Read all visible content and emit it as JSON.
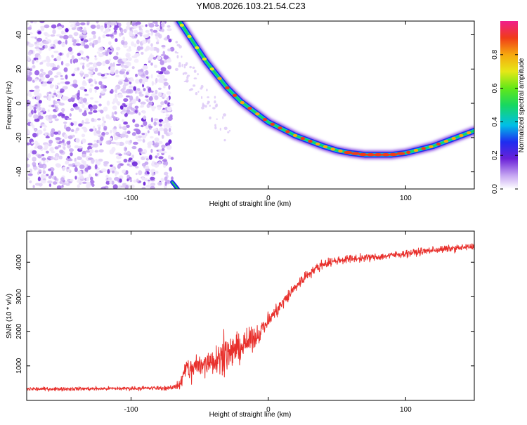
{
  "title": "YM08.2026.103.21.54.C23",
  "colors": {
    "trace": "#e8302c",
    "axis": "#000000",
    "background": "#ffffff"
  },
  "chart_data": [
    {
      "type": "heatmap",
      "name": "spectrogram",
      "title": "YM08.2026.103.21.54.C23",
      "xlabel": "Height of straight line (km)",
      "ylabel": "Frequency (Hz)",
      "xlim": [
        -176,
        150
      ],
      "ylim": [
        -50,
        48
      ],
      "xticks": [
        -100,
        0,
        100
      ],
      "yticks": [
        -40,
        -20,
        0,
        20,
        40
      ],
      "noise_region_x": [
        -176,
        -70
      ],
      "curve": {
        "description": "high-amplitude Doppler trace",
        "points": [
          [
            -65,
            48
          ],
          [
            -60,
            42
          ],
          [
            -55,
            36
          ],
          [
            -50,
            30
          ],
          [
            -45,
            24
          ],
          [
            -40,
            19
          ],
          [
            -35,
            14
          ],
          [
            -30,
            9
          ],
          [
            -25,
            5
          ],
          [
            -20,
            1
          ],
          [
            -15,
            -2
          ],
          [
            -10,
            -5
          ],
          [
            -5,
            -8
          ],
          [
            0,
            -11
          ],
          [
            10,
            -15
          ],
          [
            20,
            -19
          ],
          [
            30,
            -22
          ],
          [
            40,
            -25
          ],
          [
            50,
            -27.5
          ],
          [
            60,
            -29
          ],
          [
            70,
            -30
          ],
          [
            80,
            -30
          ],
          [
            90,
            -30
          ],
          [
            100,
            -29
          ],
          [
            110,
            -27
          ],
          [
            120,
            -25
          ],
          [
            130,
            -22
          ],
          [
            140,
            -19
          ],
          [
            150,
            -16
          ]
        ],
        "lower_fragment": [
          [
            -70,
            -46
          ],
          [
            -68,
            -48
          ],
          [
            -66,
            -50
          ]
        ]
      },
      "colorbar": {
        "label": "Normalized spectral amplitude",
        "range": [
          0,
          1
        ],
        "ticks": [
          "0.0",
          "0.2",
          "0.4",
          "0.6",
          "0.8"
        ]
      }
    },
    {
      "type": "line",
      "name": "snr",
      "title": "",
      "xlabel": "Height of straight line (km)",
      "ylabel": "SNR (10 * v/v)",
      "xlim": [
        -176,
        150
      ],
      "ylim": [
        0,
        4900
      ],
      "xticks": [
        -100,
        0,
        100
      ],
      "yticks": [
        1000,
        2000,
        3000,
        4000
      ],
      "series": [
        {
          "name": "SNR",
          "color": "#e8302c",
          "envelope": {
            "x": [
              -176,
              -120,
              -70,
              -64,
              -60,
              -50,
              -40,
              -30,
              -20,
              -10,
              0,
              10,
              20,
              30,
              40,
              50,
              60,
              80,
              100,
              120,
              150
            ],
            "mean": [
              330,
              340,
              360,
              500,
              900,
              1000,
              1200,
              1350,
              1550,
              1800,
              2300,
              2800,
              3300,
              3700,
              3950,
              4050,
              4100,
              4150,
              4250,
              4350,
              4450
            ],
            "spread": [
              80,
              80,
              90,
              250,
              450,
              550,
              650,
              700,
              650,
              450,
              350,
              300,
              260,
              220,
              200,
              180,
              170,
              150,
              150,
              150,
              140
            ]
          }
        }
      ]
    }
  ]
}
